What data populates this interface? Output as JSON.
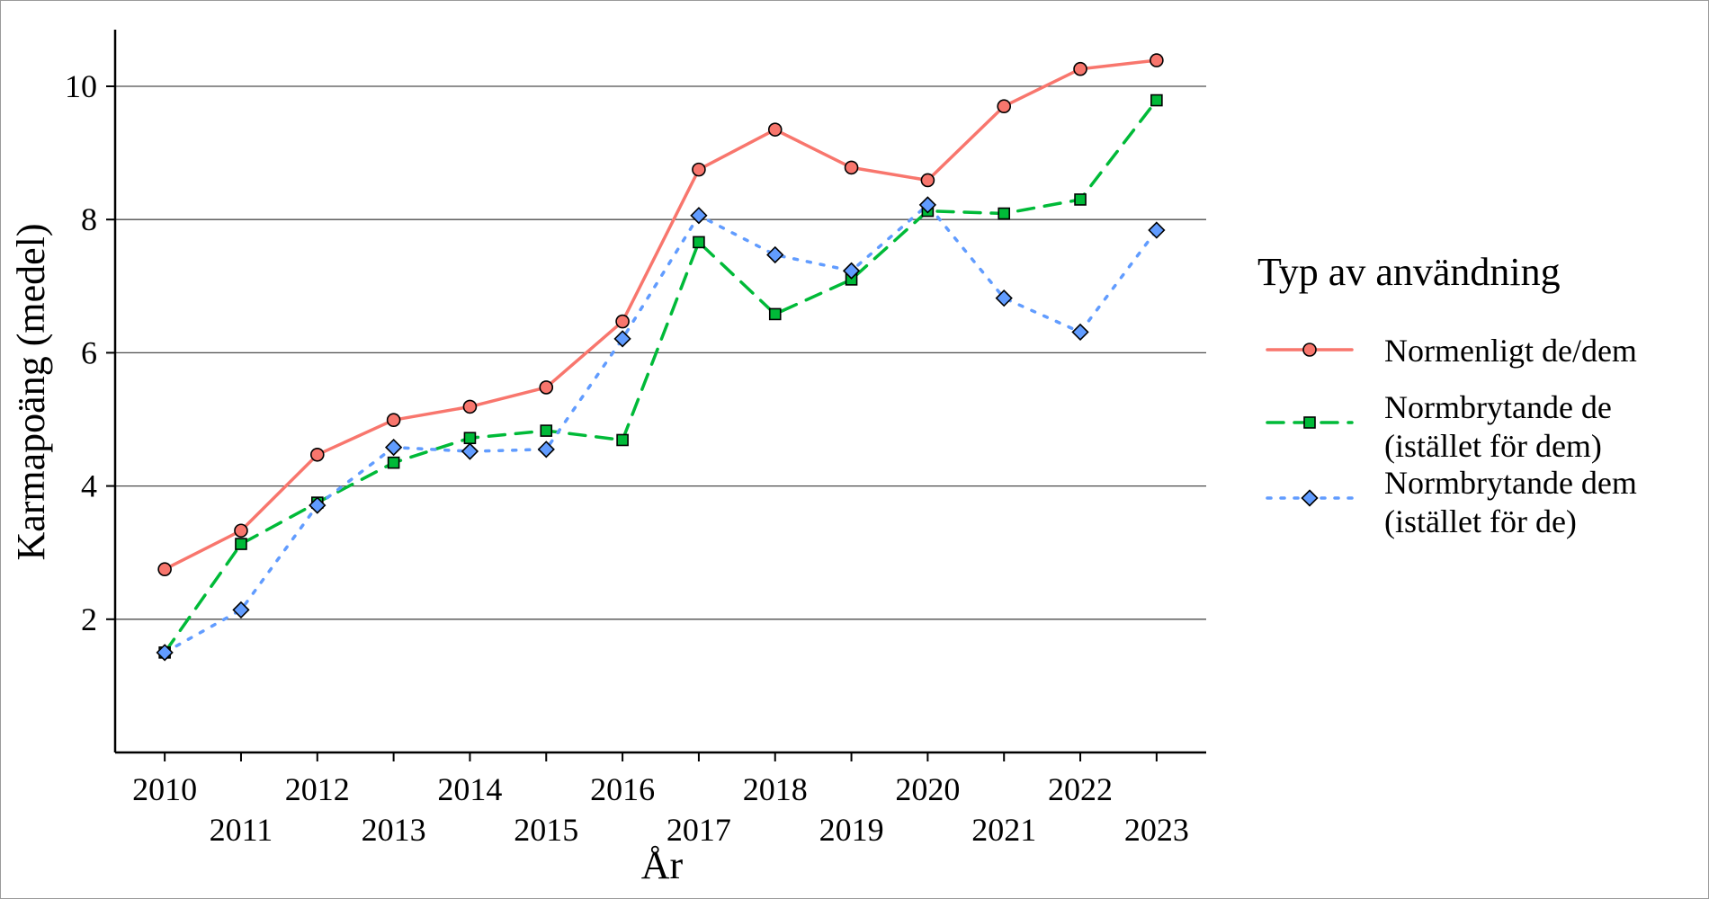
{
  "chart_data": {
    "type": "line",
    "title": "",
    "xlabel": "År",
    "ylabel": "Karmapoäng (medel)",
    "x": [
      2010,
      2011,
      2012,
      2013,
      2014,
      2015,
      2016,
      2017,
      2018,
      2019,
      2020,
      2021,
      2022,
      2023
    ],
    "x_tick_labels": [
      "2010",
      "2011",
      "2012",
      "2013",
      "2014",
      "2015",
      "2016",
      "2017",
      "2018",
      "2019",
      "2020",
      "2021",
      "2022",
      "2023"
    ],
    "y_ticks": [
      2,
      4,
      6,
      8,
      10
    ],
    "y_tick_labels": [
      "2",
      "4",
      "6",
      "8",
      "10"
    ],
    "xlim": [
      2009.35,
      2023.65
    ],
    "ylim": [
      0,
      10.85
    ],
    "grid": "horizontal major gridlines",
    "legend": {
      "title": "Typ av användning",
      "placement": "right"
    },
    "series": [
      {
        "name_lines": [
          "Normenligt de/dem"
        ],
        "marker": "circle",
        "line_style": "solid",
        "color": "#F8766D",
        "values": [
          2.75,
          3.33,
          4.47,
          4.99,
          5.19,
          5.48,
          6.47,
          8.75,
          9.35,
          8.78,
          8.59,
          9.7,
          10.26,
          10.39
        ]
      },
      {
        "name_lines": [
          "Normbrytande de",
          "(istället för dem)"
        ],
        "marker": "square",
        "line_style": "dashed",
        "color": "#00BA38",
        "values": [
          1.5,
          3.13,
          3.75,
          4.35,
          4.72,
          4.83,
          4.69,
          7.66,
          6.58,
          7.1,
          8.13,
          8.09,
          8.3,
          9.79
        ]
      },
      {
        "name_lines": [
          "Normbrytande dem",
          "(istället för de)"
        ],
        "marker": "diamond",
        "line_style": "dotted",
        "color": "#619CFF",
        "values": [
          1.5,
          2.14,
          3.71,
          4.58,
          4.52,
          4.55,
          6.21,
          8.06,
          7.47,
          7.23,
          8.22,
          6.82,
          6.31,
          7.84
        ]
      }
    ]
  }
}
